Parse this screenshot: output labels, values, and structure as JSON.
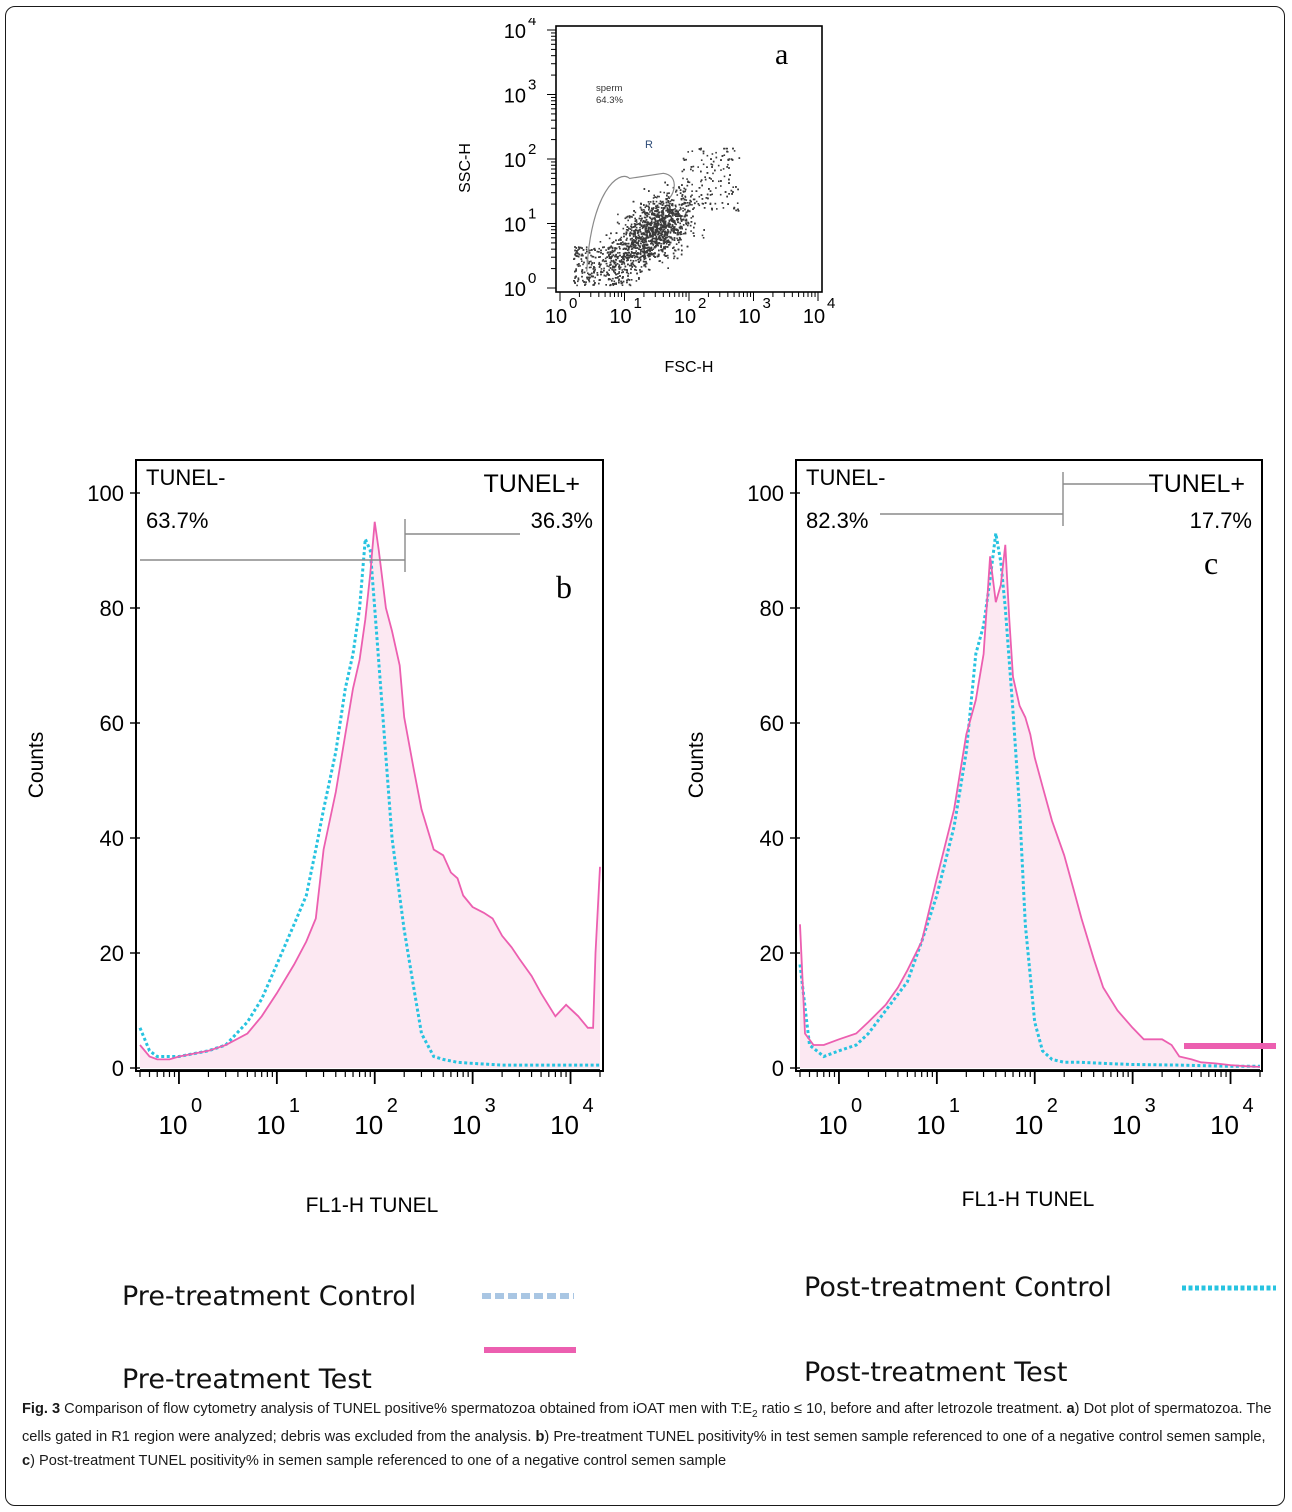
{
  "figure_label": "Fig. 3",
  "caption": {
    "intro": "Comparison of flow cytometry analysis of TUNEL positive% spermatozoa obtained from iOAT men with T:E",
    "subscript": "2",
    "after_ratio": " ratio ≤ 10, before and after letrozole treatment. ",
    "label_a": "a",
    "text_a": ") Dot plot of spermatozoa. The cells gated in R1 region were analyzed; debris was excluded from the analysis. ",
    "label_b": "b",
    "text_b": ") Pre-treatment TUNEL positivity% in test semen sample referenced to one of a negative control semen sample, ",
    "label_c": "c",
    "text_c": ") Post-treatment TUNEL positivity% in semen sample referenced to one of a negative control semen sample"
  },
  "legend": {
    "pre_control": "Pre-treatment Control",
    "pre_test": "Pre-treatment Test",
    "post_control": "Post-treatment Control",
    "post_test": "Post-treatment Test"
  },
  "colors": {
    "test_line": "#ec5fb0",
    "test_fill": "#fce8f2",
    "post_control_line": "#27c3e0",
    "pre_control_legend": "#a9c6e3",
    "dots": "#3a3a3a",
    "gate": "#8a8a8a"
  },
  "chart_data": [
    {
      "panel": "a",
      "type": "scatter",
      "xlabel": "FSC-H",
      "ylabel": "SSC-H",
      "x_scale": "log",
      "y_scale": "log",
      "xlim": [
        1,
        10000
      ],
      "ylim": [
        1,
        10000
      ],
      "gate_name": "R",
      "gate_text_line1": "sperm",
      "gate_text_line2": "64.3%",
      "cluster_center": {
        "fsc": 30,
        "ssc": 8
      }
    },
    {
      "panel": "b",
      "type": "area",
      "xlabel": "FL1-H TUNEL",
      "ylabel": "Counts",
      "x_scale": "log",
      "xlim": [
        0.4,
        20000
      ],
      "ylim": [
        0,
        100
      ],
      "y_ticks": [
        0,
        20,
        40,
        60,
        80,
        100
      ],
      "gate_left_label": "TUNEL-",
      "gate_left_value": "63.7%",
      "gate_right_label": "TUNEL+",
      "gate_right_value": "36.3%",
      "gate_split": 200,
      "series": [
        {
          "name": "Pre-treatment Test",
          "x": [
            0.4,
            0.5,
            0.6,
            0.8,
            1,
            2,
            3,
            5,
            7,
            10,
            15,
            20,
            25,
            30,
            40,
            50,
            60,
            70,
            80,
            90,
            100,
            110,
            130,
            150,
            180,
            200,
            250,
            300,
            400,
            500,
            600,
            700,
            800,
            1000,
            1300,
            1600,
            2000,
            2500,
            3000,
            4000,
            5000,
            7000,
            9000,
            12000,
            15000,
            17000,
            18000,
            20000
          ],
          "y": [
            4,
            2,
            1.5,
            1.5,
            2,
            3,
            4,
            6,
            9,
            13,
            18,
            22,
            26,
            38,
            48,
            58,
            66,
            71,
            78,
            86,
            95,
            90,
            80,
            76,
            70,
            61,
            52,
            45,
            38,
            37,
            34,
            33,
            30,
            28,
            27,
            26,
            23,
            21,
            19,
            16,
            13,
            9,
            11,
            9,
            7,
            7,
            20,
            35
          ]
        },
        {
          "name": "Pre-treatment Control",
          "x": [
            0.4,
            0.5,
            0.6,
            0.8,
            1,
            2,
            3,
            5,
            7,
            10,
            15,
            20,
            25,
            30,
            40,
            50,
            60,
            70,
            80,
            90,
            100,
            120,
            150,
            200,
            250,
            300,
            400,
            500,
            700,
            1000,
            2000,
            5000,
            10000,
            20000
          ],
          "y": [
            7,
            3,
            2,
            2,
            2,
            3,
            4,
            8,
            12,
            18,
            25,
            30,
            38,
            45,
            55,
            66,
            72,
            80,
            92,
            90,
            80,
            62,
            40,
            24,
            14,
            6,
            2,
            1.5,
            1,
            0.8,
            0.5,
            0.5,
            0.5,
            0.5
          ]
        }
      ]
    },
    {
      "panel": "c",
      "type": "area",
      "xlabel": "FL1-H TUNEL",
      "ylabel": "Counts",
      "x_scale": "log",
      "xlim": [
        0.4,
        20000
      ],
      "ylim": [
        0,
        100
      ],
      "y_ticks": [
        0,
        20,
        40,
        60,
        80,
        100
      ],
      "gate_left_label": "TUNEL-",
      "gate_left_value": "82.3%",
      "gate_right_label": "TUNEL+",
      "gate_right_value": "17.7%",
      "gate_split": 180,
      "series": [
        {
          "name": "Post-treatment Test",
          "x": [
            0.4,
            0.45,
            0.55,
            0.7,
            1,
            1.5,
            2,
            3,
            4,
            5,
            7,
            10,
            15,
            20,
            25,
            30,
            35,
            40,
            45,
            50,
            55,
            60,
            70,
            80,
            90,
            100,
            120,
            150,
            200,
            250,
            300,
            400,
            500,
            700,
            1000,
            1300,
            1600,
            2000,
            2500,
            3000,
            4000,
            5000,
            7000,
            10000,
            15000,
            20000
          ],
          "y": [
            25,
            6,
            4,
            4,
            5,
            6,
            8,
            11,
            14,
            17,
            22,
            33,
            45,
            58,
            64,
            72,
            89,
            81,
            84,
            91,
            78,
            68,
            63,
            61,
            58,
            54,
            49,
            43,
            37,
            31,
            26,
            19,
            14,
            10,
            7,
            5,
            5,
            5,
            4,
            2,
            1.5,
            1,
            0.8,
            0.5,
            0.3,
            0.2
          ]
        },
        {
          "name": "Post-treatment Control",
          "x": [
            0.4,
            0.5,
            0.7,
            1,
            1.5,
            2,
            3,
            5,
            7,
            10,
            15,
            20,
            25,
            30,
            35,
            40,
            45,
            50,
            60,
            70,
            80,
            100,
            120,
            150,
            200,
            300,
            500,
            1000,
            3000,
            10000,
            20000
          ],
          "y": [
            18,
            4,
            2,
            3,
            4,
            6,
            10,
            15,
            22,
            30,
            42,
            55,
            72,
            77,
            85,
            93,
            88,
            80,
            62,
            45,
            25,
            8,
            3,
            1.5,
            1,
            1,
            0.8,
            0.6,
            0.5,
            0.3,
            0.3
          ]
        }
      ]
    }
  ]
}
